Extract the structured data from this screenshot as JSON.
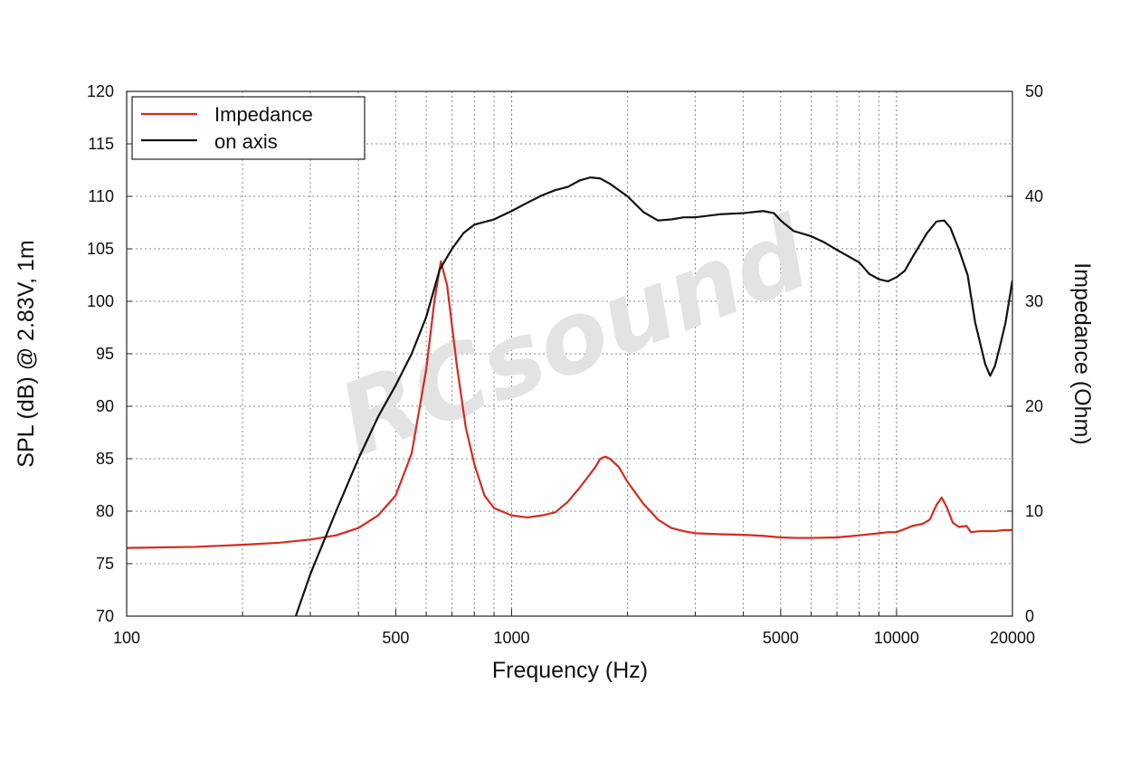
{
  "watermark": "RCsound",
  "chart_data": {
    "type": "line",
    "xlabel": "Frequency (Hz)",
    "ylabel_left": "SPL (dB) @ 2.83V, 1m",
    "ylabel_right": "Impedance (Ohm)",
    "x_scale": "log",
    "xlim": [
      100,
      20000
    ],
    "x_ticks": [
      100,
      500,
      1000,
      5000,
      10000,
      20000
    ],
    "ylim_left": [
      70,
      120
    ],
    "y_ticks_left": [
      70,
      75,
      80,
      85,
      90,
      95,
      100,
      105,
      110,
      115,
      120
    ],
    "ylim_right": [
      0,
      50
    ],
    "y_ticks_right": [
      0,
      10,
      20,
      30,
      40,
      50
    ],
    "grid": true,
    "legend_position": "top-left",
    "series": [
      {
        "name": "Impedance",
        "axis": "right",
        "color": "#d62a1e",
        "points": [
          [
            100,
            6.5
          ],
          [
            150,
            6.6
          ],
          [
            200,
            6.8
          ],
          [
            250,
            7.0
          ],
          [
            300,
            7.3
          ],
          [
            350,
            7.7
          ],
          [
            400,
            8.4
          ],
          [
            450,
            9.6
          ],
          [
            500,
            11.5
          ],
          [
            550,
            15.5
          ],
          [
            600,
            23.5
          ],
          [
            630,
            30
          ],
          [
            655,
            33.8
          ],
          [
            680,
            31.5
          ],
          [
            720,
            24
          ],
          [
            760,
            18
          ],
          [
            800,
            14.5
          ],
          [
            850,
            11.5
          ],
          [
            900,
            10.3
          ],
          [
            1000,
            9.6
          ],
          [
            1100,
            9.4
          ],
          [
            1200,
            9.6
          ],
          [
            1300,
            9.9
          ],
          [
            1400,
            10.9
          ],
          [
            1500,
            12.2
          ],
          [
            1650,
            14.2
          ],
          [
            1700,
            15.0
          ],
          [
            1750,
            15.2
          ],
          [
            1800,
            15.0
          ],
          [
            1900,
            14.2
          ],
          [
            2000,
            12.8
          ],
          [
            2200,
            10.7
          ],
          [
            2400,
            9.2
          ],
          [
            2600,
            8.4
          ],
          [
            2800,
            8.1
          ],
          [
            3000,
            7.9
          ],
          [
            3500,
            7.8
          ],
          [
            4000,
            7.75
          ],
          [
            4500,
            7.65
          ],
          [
            5000,
            7.5
          ],
          [
            5500,
            7.45
          ],
          [
            6000,
            7.45
          ],
          [
            7000,
            7.5
          ],
          [
            8000,
            7.7
          ],
          [
            9000,
            7.9
          ],
          [
            9500,
            8.0
          ],
          [
            10000,
            8.0
          ],
          [
            10500,
            8.3
          ],
          [
            11000,
            8.6
          ],
          [
            11700,
            8.8
          ],
          [
            12200,
            9.2
          ],
          [
            12700,
            10.6
          ],
          [
            13100,
            11.3
          ],
          [
            13500,
            10.4
          ],
          [
            14000,
            8.9
          ],
          [
            14500,
            8.5
          ],
          [
            15200,
            8.6
          ],
          [
            15600,
            8.0
          ],
          [
            16500,
            8.1
          ],
          [
            18000,
            8.1
          ],
          [
            19000,
            8.2
          ],
          [
            20000,
            8.2
          ]
        ]
      },
      {
        "name": "on axis",
        "axis": "left",
        "color": "#111111",
        "points": [
          [
            275,
            70
          ],
          [
            300,
            74
          ],
          [
            350,
            80
          ],
          [
            400,
            85
          ],
          [
            450,
            89
          ],
          [
            500,
            92
          ],
          [
            550,
            95
          ],
          [
            600,
            98.5
          ],
          [
            650,
            103
          ],
          [
            700,
            105
          ],
          [
            750,
            106.5
          ],
          [
            800,
            107.3
          ],
          [
            900,
            107.8
          ],
          [
            1000,
            108.6
          ],
          [
            1100,
            109.4
          ],
          [
            1200,
            110.1
          ],
          [
            1300,
            110.6
          ],
          [
            1400,
            110.9
          ],
          [
            1500,
            111.5
          ],
          [
            1600,
            111.8
          ],
          [
            1700,
            111.7
          ],
          [
            1800,
            111.2
          ],
          [
            2000,
            110.0
          ],
          [
            2200,
            108.5
          ],
          [
            2400,
            107.7
          ],
          [
            2600,
            107.8
          ],
          [
            2800,
            108.0
          ],
          [
            3000,
            108.0
          ],
          [
            3500,
            108.3
          ],
          [
            4000,
            108.4
          ],
          [
            4500,
            108.6
          ],
          [
            4800,
            108.4
          ],
          [
            5000,
            107.7
          ],
          [
            5400,
            106.7
          ],
          [
            6000,
            106.2
          ],
          [
            6500,
            105.6
          ],
          [
            7000,
            104.9
          ],
          [
            8000,
            103.7
          ],
          [
            8500,
            102.6
          ],
          [
            9000,
            102.1
          ],
          [
            9500,
            101.9
          ],
          [
            10000,
            102.3
          ],
          [
            10500,
            102.9
          ],
          [
            11000,
            104.2
          ],
          [
            12000,
            106.5
          ],
          [
            12700,
            107.6
          ],
          [
            13300,
            107.7
          ],
          [
            13800,
            107.0
          ],
          [
            14500,
            105.0
          ],
          [
            15300,
            102.5
          ],
          [
            16000,
            98.0
          ],
          [
            17000,
            94.0
          ],
          [
            17500,
            92.9
          ],
          [
            18000,
            93.8
          ],
          [
            18500,
            95.5
          ],
          [
            19200,
            98.0
          ],
          [
            20000,
            102.0
          ]
        ]
      }
    ]
  }
}
